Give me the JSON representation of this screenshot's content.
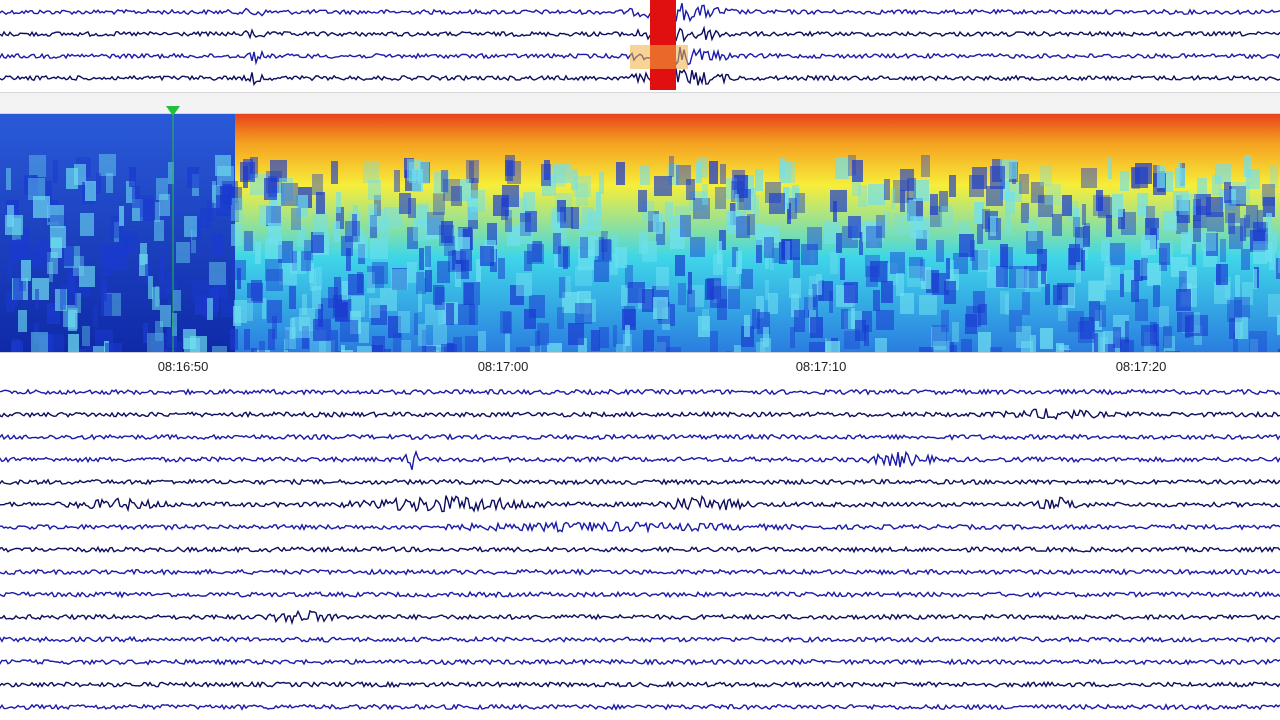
{
  "colors": {
    "trace_primary": "#1a1aa8",
    "trace_dark": "#0d0d5e",
    "spectrogram_low": "#1e3cc8",
    "spectrogram_mid": "#3fd6e8",
    "spectrogram_high": "#f7ee3a",
    "spectrogram_peak": "#e8421c",
    "event_marker": "#e01010",
    "pick_marker": "#22c03a"
  },
  "icons": {
    "pick_marker": "triangle-down-icon"
  },
  "time_axis": {
    "ticks": [
      {
        "id": "t1",
        "label": "08:16:50"
      },
      {
        "id": "t2",
        "label": "08:17:00"
      },
      {
        "id": "t3",
        "label": "08:17:10"
      },
      {
        "id": "t4",
        "label": "08:17:20"
      }
    ]
  },
  "traces": {
    "top_count": 4,
    "bottom_count": 15
  }
}
